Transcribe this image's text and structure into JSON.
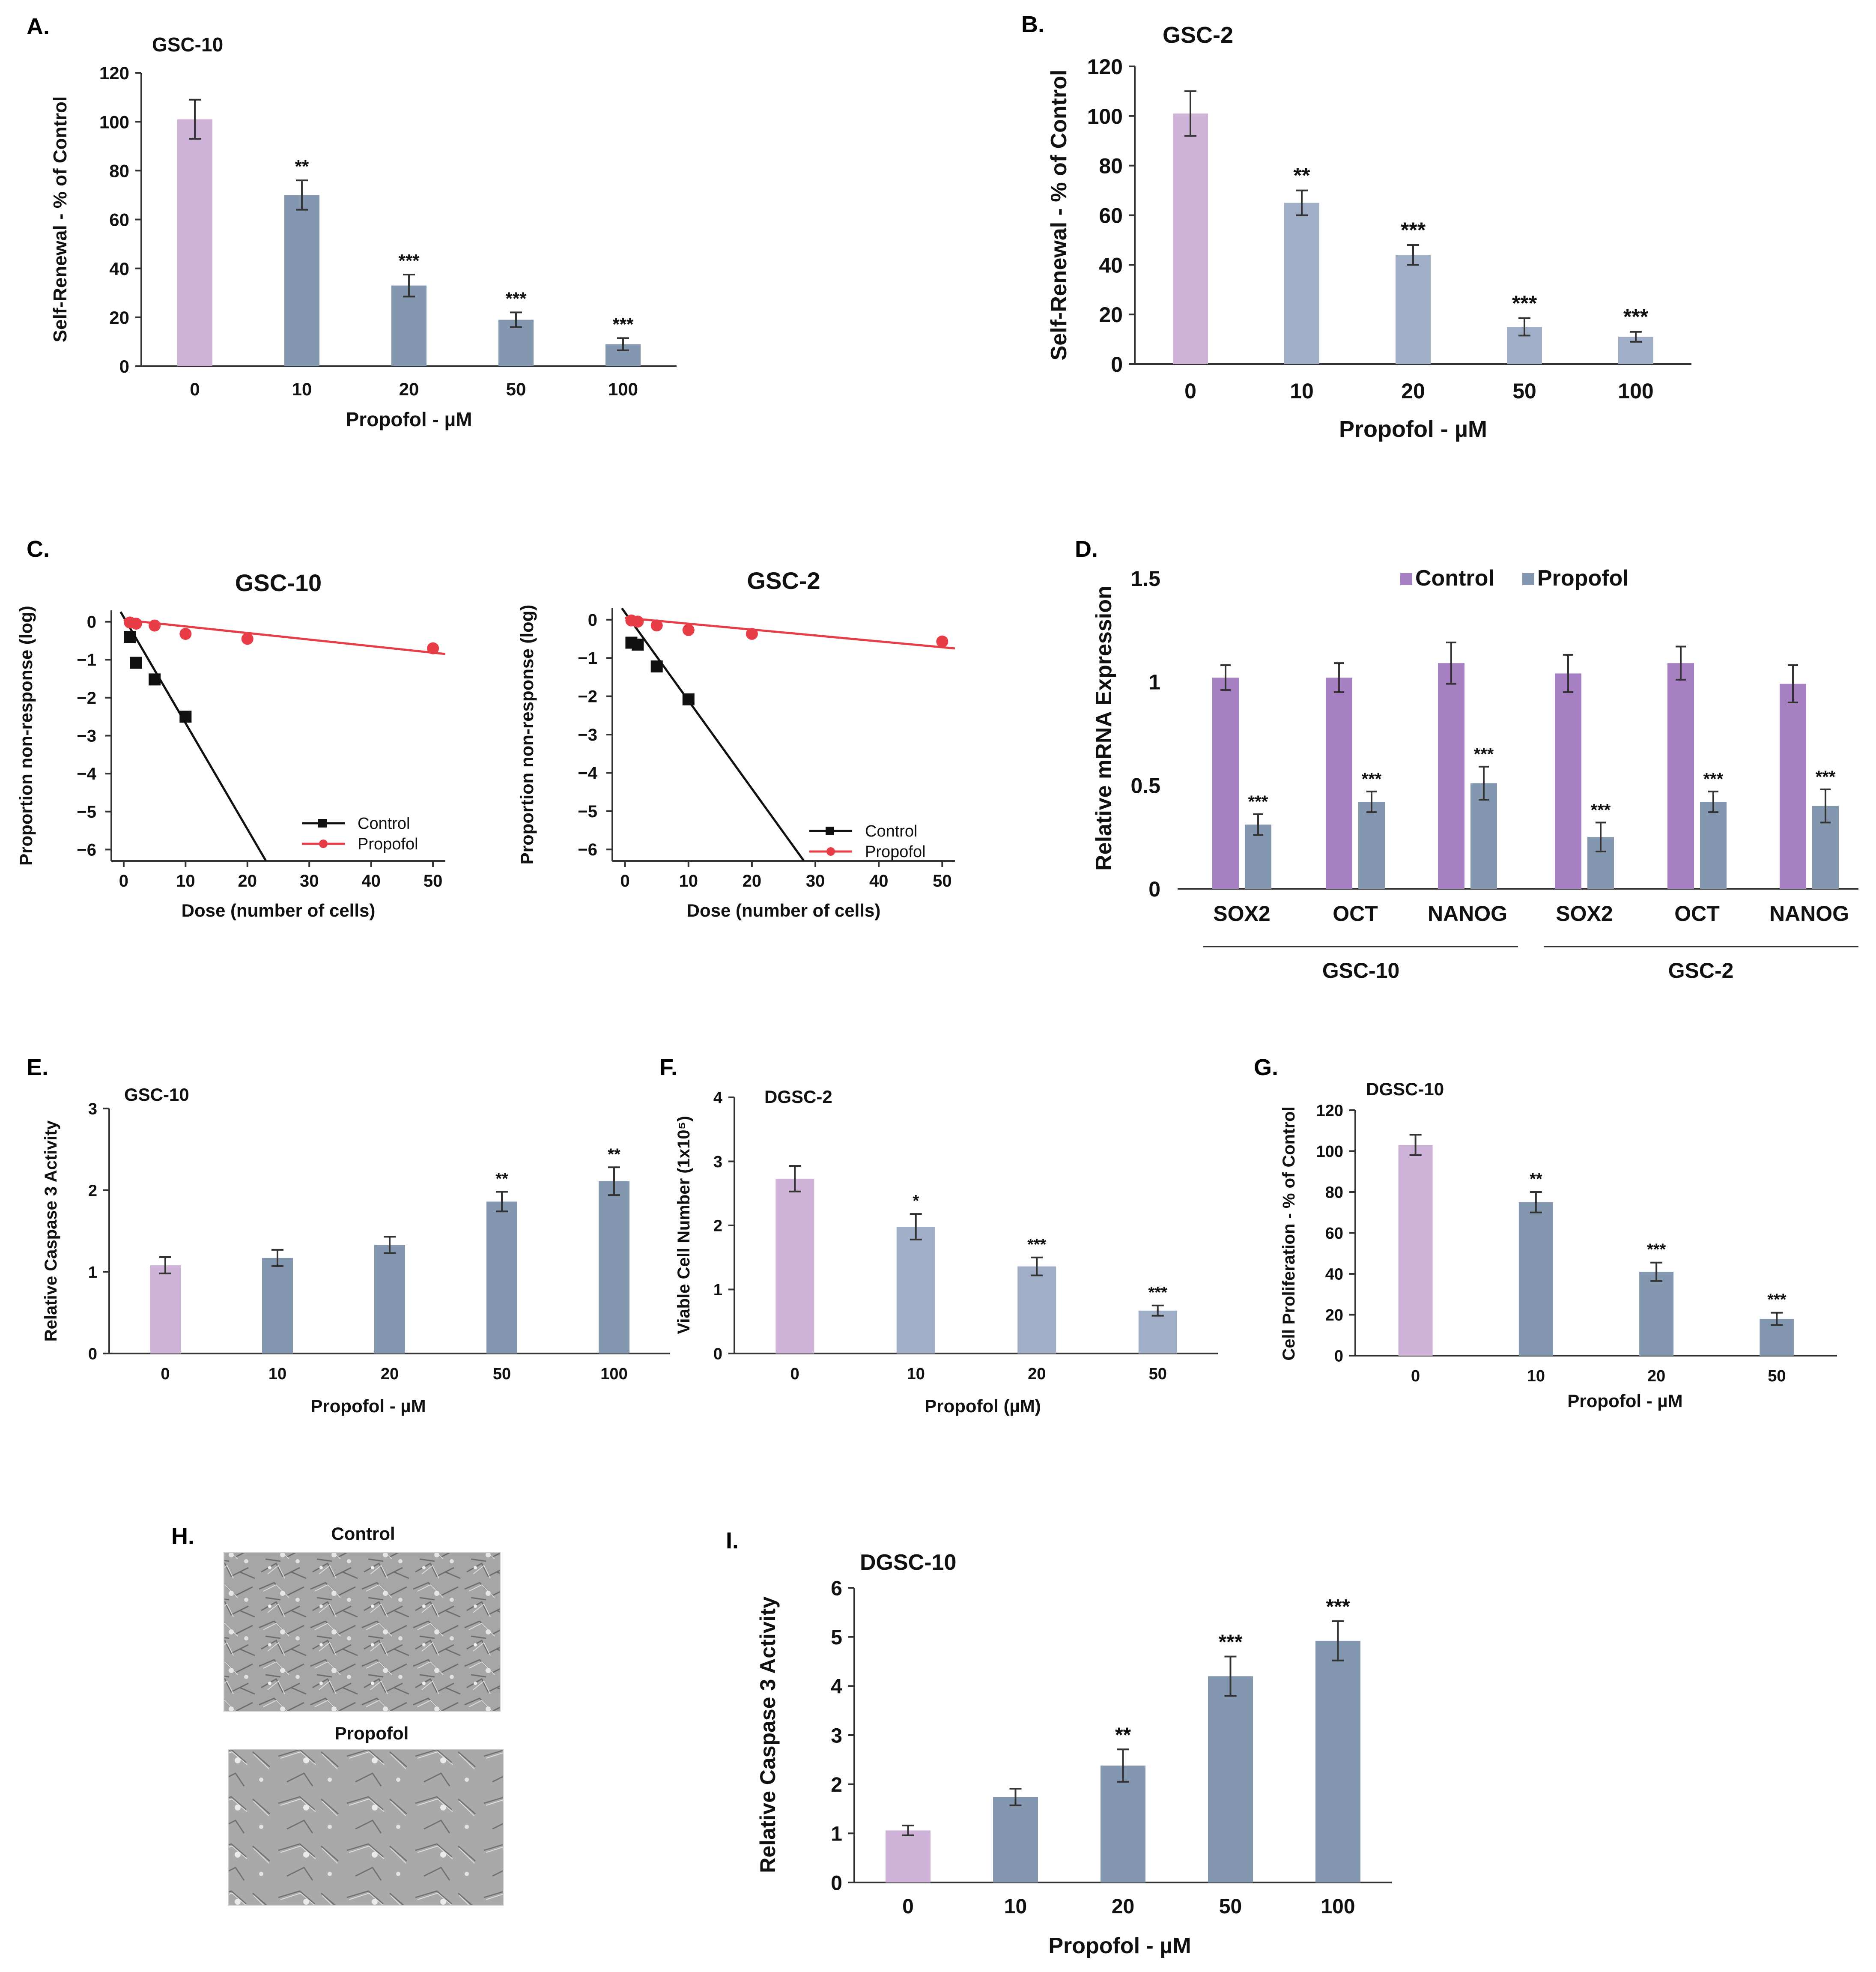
{
  "colors": {
    "control": "#cfb2d8",
    "treated": "#8497b0",
    "treated_light": "#a0aec8",
    "mrna_control": "#a77fc3",
    "mrna_propofol": "#8497b0",
    "line_control": "#111111",
    "line_propofol": "#e83c47"
  },
  "microscopy": {
    "panel_label": "H.",
    "control_label": "Control",
    "propofol_label": "Propofol"
  },
  "chart_data": [
    {
      "id": "A",
      "type": "bar",
      "panel_label": "A.",
      "title": "GSC-10",
      "xlabel": "Propofol - µM",
      "ylabel": "Self-Renewal - % of Control",
      "categories": [
        "0",
        "10",
        "20",
        "50",
        "100"
      ],
      "values": [
        101,
        70,
        33,
        19,
        9
      ],
      "errors": [
        8,
        6,
        4.5,
        3,
        2.5
      ],
      "significance": [
        "",
        "**",
        "***",
        "***",
        "***"
      ],
      "ylim": [
        0,
        120
      ],
      "yticks": [
        "0",
        "20",
        "40",
        "60",
        "80",
        "100",
        "120"
      ]
    },
    {
      "id": "B",
      "type": "bar",
      "panel_label": "B.",
      "title": "GSC-2",
      "xlabel": "Propofol - µM",
      "ylabel": "Self-Renewal - % of Control",
      "categories": [
        "0",
        "10",
        "20",
        "50",
        "100"
      ],
      "values": [
        101,
        65,
        44,
        15,
        11
      ],
      "errors": [
        9,
        5,
        4,
        3.5,
        2
      ],
      "significance": [
        "",
        "**",
        "***",
        "***",
        "***"
      ],
      "ylim": [
        0,
        120
      ],
      "yticks": [
        "0",
        "20",
        "40",
        "60",
        "80",
        "100",
        "120"
      ]
    },
    {
      "id": "C1",
      "type": "scatter",
      "panel_label": "C.",
      "title": "GSC-10",
      "xlabel": "Dose (number of cells)",
      "ylabel": "Proportion non-response (log)",
      "xlim": [
        -2,
        52
      ],
      "ylim": [
        -6.3,
        0.3
      ],
      "xticks": [
        "0",
        "10",
        "20",
        "30",
        "40",
        "50"
      ],
      "yticks": [
        "0",
        "−1",
        "−2",
        "−3",
        "−4",
        "−5",
        "−6"
      ],
      "series": [
        {
          "name": "Control",
          "x": [
            1,
            2,
            5,
            10
          ],
          "y": [
            -0.4,
            -1.08,
            -1.52,
            -2.5
          ],
          "fit": {
            "x0": -0.5,
            "y0": 0.26,
            "x1": 23,
            "y1": -6.3
          }
        },
        {
          "name": "Propofol",
          "x": [
            1,
            2,
            5,
            10,
            20,
            50
          ],
          "y": [
            -0.02,
            -0.05,
            -0.1,
            -0.32,
            -0.45,
            -0.7
          ],
          "fit": {
            "x0": 0,
            "y0": 0.05,
            "x1": 52,
            "y1": -0.85
          }
        }
      ],
      "legend": [
        "Control",
        "Propofol"
      ]
    },
    {
      "id": "C2",
      "type": "scatter",
      "panel_label": "",
      "title": "GSC-2",
      "xlabel": "Dose (number of cells)",
      "ylabel": "Proportion non-response (log)",
      "xlim": [
        -2,
        52
      ],
      "ylim": [
        -6.3,
        0.3
      ],
      "xticks": [
        "0",
        "10",
        "20",
        "30",
        "40",
        "50"
      ],
      "yticks": [
        "0",
        "−1",
        "−2",
        "−3",
        "−4",
        "−5",
        "−6"
      ],
      "series": [
        {
          "name": "Control",
          "x": [
            1,
            2,
            5,
            10
          ],
          "y": [
            -0.6,
            -0.65,
            -1.22,
            -2.08
          ],
          "fit": {
            "x0": -0.5,
            "y0": 0.3,
            "x1": 28.2,
            "y1": -6.3
          }
        },
        {
          "name": "Propofol",
          "x": [
            1,
            2,
            5,
            10,
            20,
            50
          ],
          "y": [
            -0.02,
            -0.05,
            -0.15,
            -0.27,
            -0.37,
            -0.57
          ],
          "fit": {
            "x0": 0,
            "y0": 0.05,
            "x1": 52,
            "y1": -0.75
          }
        }
      ],
      "legend": [
        "Control",
        "Propofol"
      ]
    },
    {
      "id": "D",
      "type": "bar",
      "panel_label": "D.",
      "title": "",
      "xlabel": "",
      "ylabel": "Relative  mRNA Expression",
      "categories": [
        "SOX2",
        "OCT",
        "NANOG",
        "SOX2",
        "OCT",
        "NANOG"
      ],
      "groups": [
        "GSC-10",
        "GSC-2"
      ],
      "series": [
        {
          "name": "Control",
          "values": [
            1.02,
            1.02,
            1.09,
            1.04,
            1.09,
            0.99
          ],
          "errors": [
            0.06,
            0.07,
            0.1,
            0.09,
            0.08,
            0.09
          ]
        },
        {
          "name": "Propofol",
          "values": [
            0.31,
            0.42,
            0.51,
            0.25,
            0.42,
            0.4
          ],
          "errors": [
            0.05,
            0.05,
            0.08,
            0.07,
            0.05,
            0.08
          ],
          "significance": [
            "***",
            "***",
            "***",
            "***",
            "***",
            "***"
          ]
        }
      ],
      "ylim": [
        0,
        1.5
      ],
      "yticks": [
        "0",
        "0.5",
        "1",
        "1.5"
      ]
    },
    {
      "id": "E",
      "type": "bar",
      "panel_label": "E.",
      "title": "GSC-10",
      "xlabel": "Propofol - µM",
      "ylabel": "Relative Caspase 3 Activity",
      "categories": [
        "0",
        "10",
        "20",
        "50",
        "100"
      ],
      "values": [
        1.08,
        1.17,
        1.33,
        1.86,
        2.11
      ],
      "errors": [
        0.1,
        0.1,
        0.1,
        0.12,
        0.17
      ],
      "significance": [
        "",
        "",
        "",
        "**",
        "**"
      ],
      "ylim": [
        0,
        3
      ],
      "yticks": [
        "0",
        "1",
        "2",
        "3"
      ]
    },
    {
      "id": "F",
      "type": "bar",
      "panel_label": "F.",
      "title": "DGSC-2",
      "xlabel": "Propofol (µM)",
      "ylabel": "Viable Cell Number (1x10⁵)",
      "categories": [
        "0",
        "10",
        "20",
        "50"
      ],
      "values": [
        2.73,
        1.98,
        1.36,
        0.67
      ],
      "errors": [
        0.2,
        0.2,
        0.14,
        0.08
      ],
      "significance": [
        "",
        "*",
        "***",
        "***"
      ],
      "ylim": [
        0,
        4
      ],
      "yticks": [
        "0",
        "1",
        "2",
        "3",
        "4"
      ]
    },
    {
      "id": "G",
      "type": "bar",
      "panel_label": "G.",
      "title": "DGSC-10",
      "xlabel": "Propofol - µM",
      "ylabel": "Cell Proliferation - % of Control",
      "categories": [
        "0",
        "10",
        "20",
        "50"
      ],
      "values": [
        103,
        75,
        41,
        18
      ],
      "errors": [
        5,
        5,
        4.5,
        3
      ],
      "significance": [
        "",
        "**",
        "***",
        "***"
      ],
      "ylim": [
        0,
        120
      ],
      "yticks": [
        "0",
        "20",
        "40",
        "60",
        "80",
        "100",
        "120"
      ]
    },
    {
      "id": "I",
      "type": "bar",
      "panel_label": "I.",
      "title": "DGSC-10",
      "xlabel": "Propofol - µM",
      "ylabel": "Relative Caspase 3 Activity",
      "categories": [
        "0",
        "10",
        "20",
        "50",
        "100"
      ],
      "values": [
        1.06,
        1.74,
        2.38,
        4.2,
        4.92
      ],
      "errors": [
        0.1,
        0.17,
        0.33,
        0.4,
        0.4
      ],
      "significance": [
        "",
        "",
        "**",
        "***",
        "***"
      ],
      "ylim": [
        0,
        6
      ],
      "yticks": [
        "0",
        "1",
        "2",
        "3",
        "4",
        "5",
        "6"
      ]
    }
  ]
}
